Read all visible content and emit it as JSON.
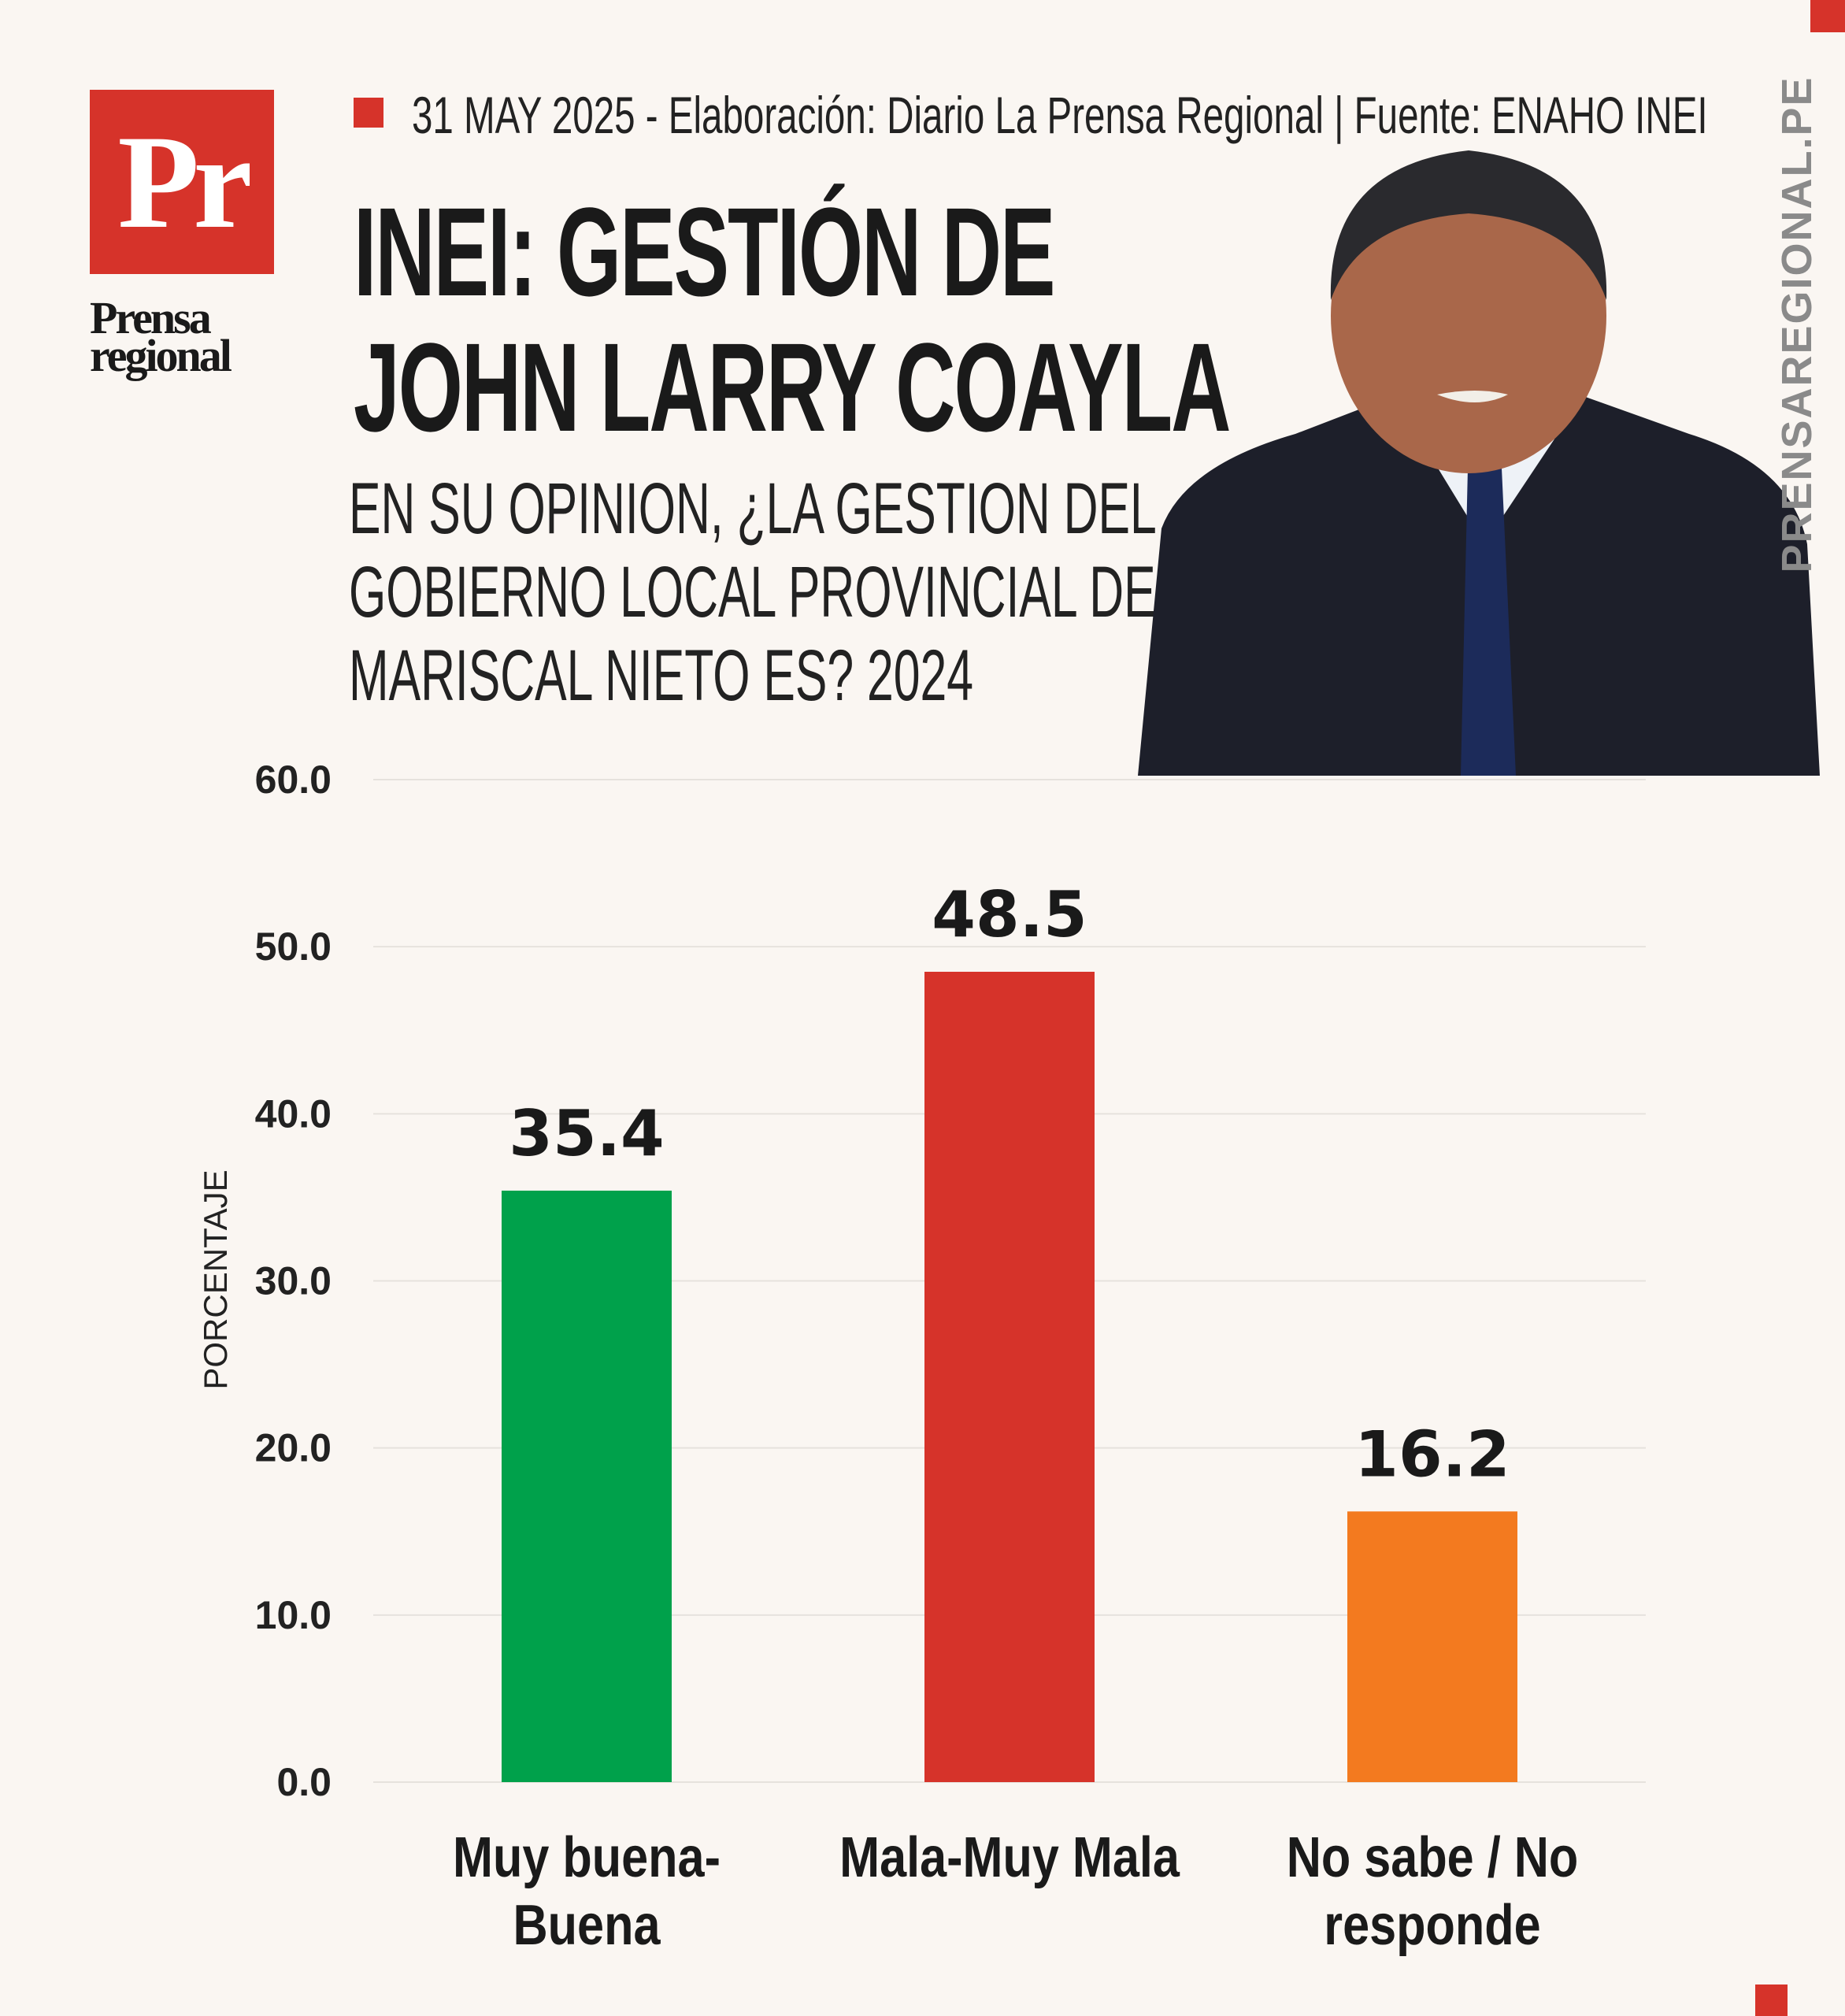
{
  "brand": {
    "logo_letters": "Pr",
    "logo_name_line1": "Prensa",
    "logo_name_line2": "regional",
    "website": "PRENSAREGIONAL.PE",
    "accent": "#d6332a"
  },
  "header": {
    "meta": "31 MAY 2025 -  Elaboración: Diario La Prensa Regional | Fuente: ENAHO INEI",
    "title_line1": "INEI: GESTIÓN DE",
    "title_line2": "JOHN LARRY COAYLA",
    "subtitle_line1": "EN SU OPINION, ¿LA GESTION DEL",
    "subtitle_line2": "GOBIERNO LOCAL PROVINCIAL DE",
    "subtitle_line3": "MARISCAL NIETO ES? 2024"
  },
  "chart_data": {
    "type": "bar",
    "title": "EN SU OPINION, ¿LA GESTION DEL GOBIERNO LOCAL PROVINCIAL DE MARISCAL NIETO ES? 2024",
    "xlabel": "",
    "ylabel": "PORCENTAJE",
    "ylim": [
      0,
      60
    ],
    "yticks": [
      "0.0",
      "10.0",
      "20.0",
      "30.0",
      "40.0",
      "50.0",
      "60.0"
    ],
    "categories": [
      [
        "Muy buena-",
        "Buena"
      ],
      [
        "Mala-Muy Mala"
      ],
      [
        "No sabe / No",
        "responde"
      ]
    ],
    "values": [
      35.4,
      48.5,
      16.2
    ],
    "value_labels": [
      "35.4",
      "48.5",
      "16.2"
    ],
    "colors": [
      "#00a14b",
      "#d6332a",
      "#f37a1f"
    ],
    "grid": true
  }
}
